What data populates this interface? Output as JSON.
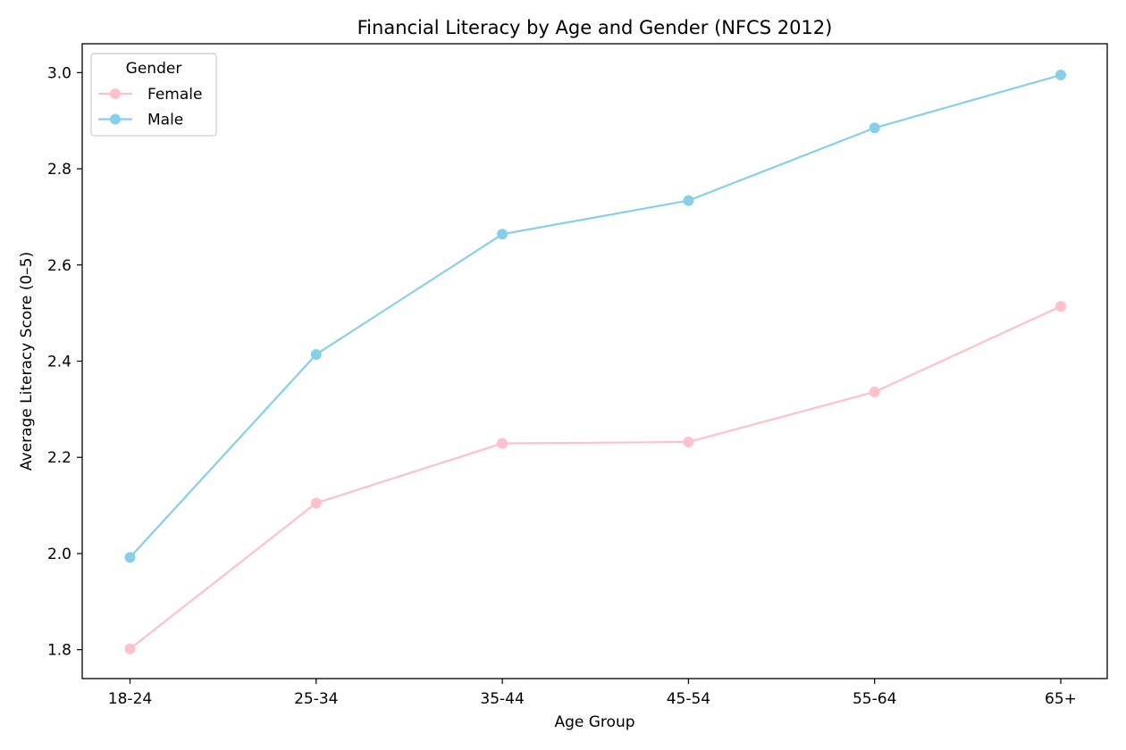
{
  "chart_data": {
    "type": "line",
    "title": "Financial Literacy by Age and Gender (NFCS 2012)",
    "xlabel": "Age Group",
    "ylabel": "Average Literacy Score (0–5)",
    "categories": [
      "18-24",
      "25-34",
      "35-44",
      "45-54",
      "55-64",
      "65+"
    ],
    "ylim": [
      1.74,
      3.06
    ],
    "yticks": [
      1.8,
      2.0,
      2.2,
      2.4,
      2.6,
      2.8,
      3.0
    ],
    "ytick_labels": [
      "1.8",
      "2.0",
      "2.2",
      "2.4",
      "2.6",
      "2.8",
      "3.0"
    ],
    "grid": false,
    "legend": {
      "title": "Gender",
      "placement": "top-left"
    },
    "series": [
      {
        "name": "Female",
        "color": "#ffc0cb",
        "values": [
          1.802,
          2.105,
          2.229,
          2.232,
          2.336,
          2.514
        ]
      },
      {
        "name": "Male",
        "color": "#87ceeb",
        "values": [
          1.992,
          2.414,
          2.664,
          2.734,
          2.885,
          2.995
        ]
      }
    ]
  }
}
